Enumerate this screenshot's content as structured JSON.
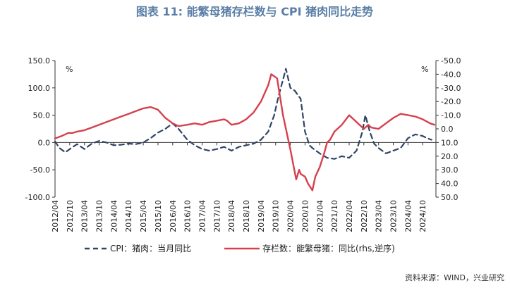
{
  "chart_data": {
    "type": "line",
    "title": "图表 11: 能繁母猪存栏数与 CPI 猪肉同比走势",
    "source": "资料来源：WIND，兴业研究",
    "y_unit_left": "%",
    "y_unit_right": "%",
    "ylim_left": [
      -100,
      150
    ],
    "yticks_left": [
      "150.0",
      "100.0",
      "50.0",
      "0.0",
      "-50.0",
      "-100.0"
    ],
    "ylim_right_inverted": [
      50,
      -50
    ],
    "yticks_right": [
      "-50.0",
      "-40.0",
      "-30.0",
      "-20.0",
      "-10.0",
      "0.0",
      "10.0",
      "20.0",
      "30.0",
      "40.0",
      "50.0"
    ],
    "x_tick_labels": [
      "2012/04",
      "2012/10",
      "2013/04",
      "2013/10",
      "2014/04",
      "2014/10",
      "2015/04",
      "2015/10",
      "2016/04",
      "2016/10",
      "2017/04",
      "2017/10",
      "2018/04",
      "2018/10",
      "2019/04",
      "2019/10",
      "2020/04",
      "2020/10",
      "2021/04",
      "2021/10",
      "2022/04",
      "2022/10",
      "2023/04",
      "2023/10",
      "2024/04",
      "2024/10"
    ],
    "x_range": [
      2012.25,
      2025.2
    ],
    "series": [
      {
        "name": "CPI：猪肉：当月同比",
        "axis": "left",
        "style": "dashed",
        "color": "#2f4565",
        "x": [
          2012.25,
          2012.4,
          2012.6,
          2012.8,
          2013.0,
          2013.25,
          2013.5,
          2013.75,
          2014.0,
          2014.25,
          2014.5,
          2014.75,
          2015.0,
          2015.25,
          2015.5,
          2015.75,
          2016.0,
          2016.25,
          2016.45,
          2016.75,
          2017.0,
          2017.25,
          2017.5,
          2017.75,
          2018.0,
          2018.25,
          2018.5,
          2018.75,
          2019.0,
          2019.25,
          2019.5,
          2019.7,
          2019.85,
          2020.0,
          2020.1,
          2020.25,
          2020.4,
          2020.6,
          2020.75,
          2020.9,
          2021.0,
          2021.25,
          2021.5,
          2021.75,
          2022.0,
          2022.25,
          2022.5,
          2022.7,
          2022.8,
          2022.95,
          2023.1,
          2023.25,
          2023.5,
          2023.75,
          2024.0,
          2024.25,
          2024.5,
          2024.75,
          2024.9,
          2025.05
        ],
        "y": [
          2,
          -10,
          -18,
          -10,
          -3,
          -12,
          -2,
          3,
          0,
          -5,
          -4,
          -2,
          -3,
          0,
          8,
          18,
          25,
          35,
          25,
          5,
          -5,
          -12,
          -15,
          -12,
          -8,
          -15,
          -8,
          -5,
          -2,
          5,
          20,
          50,
          85,
          115,
          135,
          100,
          95,
          80,
          20,
          -5,
          -10,
          -20,
          -28,
          -30,
          -25,
          -28,
          -15,
          20,
          50,
          20,
          -2,
          -10,
          -20,
          -15,
          -10,
          8,
          15,
          12,
          8,
          5
        ]
      },
      {
        "name": "存栏数：能繁母猪：同比(rhs,逆序)",
        "axis": "right",
        "style": "solid",
        "color": "#d6404d",
        "x": [
          2012.25,
          2012.5,
          2012.7,
          2012.85,
          2013.0,
          2013.25,
          2013.5,
          2013.75,
          2014.0,
          2014.25,
          2014.5,
          2014.75,
          2015.0,
          2015.25,
          2015.5,
          2015.75,
          2016.0,
          2016.25,
          2016.45,
          2016.75,
          2017.0,
          2017.25,
          2017.5,
          2017.75,
          2018.0,
          2018.1,
          2018.25,
          2018.5,
          2018.75,
          2019.0,
          2019.25,
          2019.5,
          2019.6,
          2019.8,
          2020.0,
          2020.25,
          2020.45,
          2020.55,
          2020.6,
          2020.75,
          2020.85,
          2021.0,
          2021.1,
          2021.25,
          2021.4,
          2021.5,
          2021.6,
          2021.75,
          2022.0,
          2022.25,
          2022.5,
          2022.75,
          2022.9,
          2023.0,
          2023.25,
          2023.5,
          2023.75,
          2024.0,
          2024.25,
          2024.5,
          2024.75,
          2025.0,
          2025.15
        ],
        "y": [
          7,
          5,
          3,
          3,
          2,
          1,
          -1,
          -3,
          -5,
          -7,
          -9,
          -11,
          -13,
          -15,
          -16,
          -14,
          -8,
          -4,
          -2,
          -3,
          -4,
          -3,
          -5,
          -6,
          -7,
          -6,
          -3,
          -4,
          -7,
          -12,
          -20,
          -32,
          -40,
          -37,
          -10,
          15,
          37,
          30,
          33,
          35,
          40,
          45,
          35,
          28,
          18,
          10,
          8,
          2,
          -3,
          -10,
          -5,
          0,
          -3,
          -1,
          0,
          -4,
          -8,
          -11,
          -10,
          -9,
          -7,
          -4,
          -3
        ]
      }
    ],
    "legend": [
      "CPI：猪肉：当月同比",
      "存栏数：能繁母猪：同比(rhs,逆序)"
    ],
    "legend_position": "bottom",
    "grid": false
  }
}
